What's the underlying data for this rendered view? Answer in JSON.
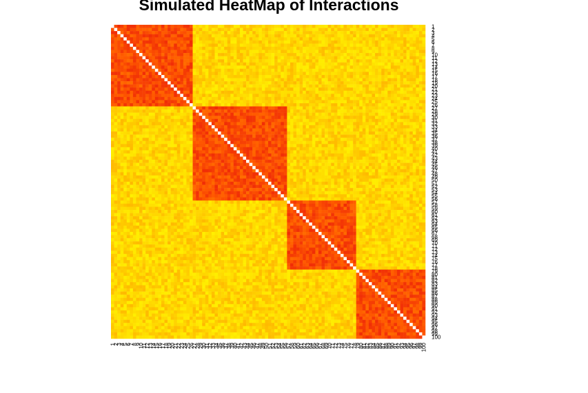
{
  "chart_data": {
    "type": "heatmap",
    "title": "Simulated HeatMap of Interactions",
    "xlabel": "",
    "ylabel": "",
    "n": 100,
    "row_labels": [
      "1",
      "2",
      "3",
      "4",
      "5",
      "6",
      "7",
      "8",
      "9",
      "10",
      "11",
      "12",
      "13",
      "14",
      "15",
      "16",
      "17",
      "18",
      "19",
      "20",
      "21",
      "22",
      "23",
      "24",
      "25",
      "26",
      "27",
      "28",
      "29",
      "30",
      "31",
      "32",
      "33",
      "34",
      "35",
      "36",
      "37",
      "38",
      "39",
      "40",
      "41",
      "42",
      "43",
      "44",
      "45",
      "46",
      "47",
      "48",
      "49",
      "50",
      "51",
      "52",
      "53",
      "54",
      "55",
      "56",
      "57",
      "58",
      "59",
      "60",
      "61",
      "62",
      "63",
      "64",
      "65",
      "66",
      "67",
      "68",
      "69",
      "70",
      "71",
      "72",
      "73",
      "74",
      "75",
      "76",
      "77",
      "78",
      "79",
      "80",
      "81",
      "82",
      "83",
      "84",
      "85",
      "86",
      "87",
      "88",
      "89",
      "90",
      "91",
      "92",
      "93",
      "94",
      "95",
      "96",
      "97",
      "98",
      "99",
      "100"
    ],
    "col_labels": [
      "1",
      "2",
      "3",
      "4",
      "5",
      "6",
      "7",
      "8",
      "9",
      "10",
      "11",
      "12",
      "13",
      "14",
      "15",
      "16",
      "17",
      "18",
      "19",
      "20",
      "21",
      "22",
      "23",
      "24",
      "25",
      "26",
      "27",
      "28",
      "29",
      "30",
      "31",
      "32",
      "33",
      "34",
      "35",
      "36",
      "37",
      "38",
      "39",
      "40",
      "41",
      "42",
      "43",
      "44",
      "45",
      "46",
      "47",
      "48",
      "49",
      "50",
      "51",
      "52",
      "53",
      "54",
      "55",
      "56",
      "57",
      "58",
      "59",
      "60",
      "61",
      "62",
      "63",
      "64",
      "65",
      "66",
      "67",
      "68",
      "69",
      "70",
      "71",
      "72",
      "73",
      "74",
      "75",
      "76",
      "77",
      "78",
      "79",
      "80",
      "81",
      "82",
      "83",
      "84",
      "85",
      "86",
      "87",
      "88",
      "89",
      "90",
      "91",
      "92",
      "93",
      "94",
      "95",
      "96",
      "97",
      "98",
      "99",
      "100"
    ],
    "clusters": [
      {
        "start": 1,
        "end": 26
      },
      {
        "start": 27,
        "end": 56
      },
      {
        "start": 57,
        "end": 78
      },
      {
        "start": 79,
        "end": 100
      }
    ],
    "within_cluster_value": 0.8,
    "between_cluster_value": 0.25,
    "diagonal_value": 1.0,
    "color_scale": [
      "#e8140a",
      "#ff5a00",
      "#ffa500",
      "#ffd700",
      "#ffff00"
    ],
    "diagonal_color": "#ffffff",
    "legend": "none",
    "grid": false
  }
}
